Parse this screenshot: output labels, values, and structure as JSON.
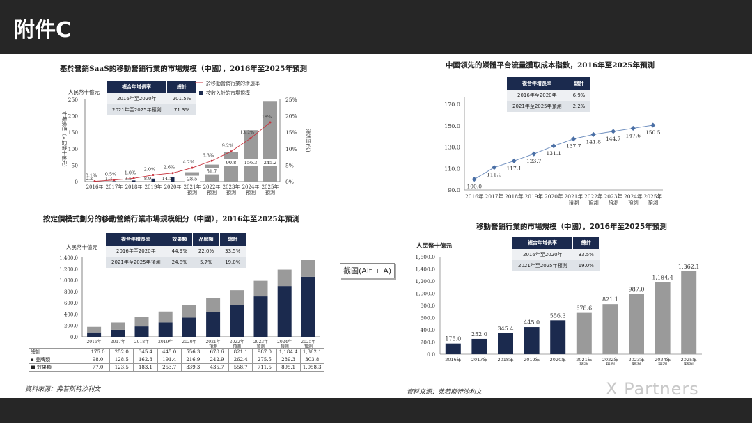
{
  "header": {
    "title": "附件C"
  },
  "tooltip": {
    "label": "截圖(Alt + A)"
  },
  "watermark": {
    "text": "X Partners"
  },
  "sources": {
    "left": "資料來源：弗若斯特沙利文",
    "right": "資料來源：弗若斯特沙利文"
  },
  "colors": {
    "navy": "#1b2a4e",
    "grey": "#9a9a9a",
    "red": "#c8323c",
    "line_blue": "#6f8fbf",
    "bar_dark": "#262626"
  },
  "chart_data": [
    {
      "id": "saas",
      "type": "bar",
      "title": "基於營銷SaaS的移動營銷行業的市場規模（中國），2016年至2025年預測",
      "unit": "人民幣十億元",
      "ylabel": "市場規模（人民幣十億元）",
      "y2label": "滲透率(%)",
      "ylim": [
        0,
        250
      ],
      "y2lim": [
        0,
        25
      ],
      "yticks": [
        "0",
        "50",
        "100",
        "150",
        "200",
        "250"
      ],
      "y2ticks": [
        "0%",
        "5%",
        "10%",
        "15%",
        "20%",
        "25%"
      ],
      "categories": [
        "2016年",
        "2017年",
        "2018年",
        "2019年",
        "2020年",
        "2021年預測",
        "2022年預測",
        "2023年預測",
        "2024年預測",
        "2025年預測"
      ],
      "legend": [
        "於移動營銷行業的滲透率",
        "按收入計的市場規模"
      ],
      "series": [
        {
          "name": "按收入計的市場規模",
          "values": [
            0.2,
            1.3,
            3.5,
            8.9,
            14.5,
            28.5,
            51.7,
            90.8,
            156.3,
            245.2
          ],
          "labels": [
            "0.2",
            "1.3",
            "3.5",
            "8.9",
            "14.5",
            "28.5",
            "51.7",
            "90.8",
            "156.3",
            "245.2"
          ]
        },
        {
          "name": "於移動營銷行業的滲透率",
          "values": [
            0.1,
            0.5,
            1.0,
            2.0,
            2.6,
            4.2,
            6.3,
            9.2,
            13.2,
            18
          ],
          "labels": [
            "0.1%",
            "0.5%",
            "1.0%",
            "2.0%",
            "2.6%",
            "4.2%",
            "6.3%",
            "9.2%",
            "13.2%",
            "18%"
          ]
        }
      ],
      "cagr": {
        "headers": [
          "複合年增長率",
          "總計"
        ],
        "rows": [
          [
            "2016年至2020年",
            "201.5%"
          ],
          [
            "2021年至2025年預測",
            "71.3%"
          ]
        ]
      }
    },
    {
      "id": "cost_index",
      "type": "line",
      "title": "中國領先的媒體平台流量獲取成本指數，2016年至2025年預測",
      "ylim": [
        90,
        170
      ],
      "yticks": [
        "90.0",
        "110.0",
        "130.0",
        "150.0",
        "170.0"
      ],
      "categories": [
        "2016年",
        "2017年",
        "2018年",
        "2019年",
        "2020年",
        "2021年預測",
        "2022年預測",
        "2023年預測",
        "2024年預測",
        "2025年預測"
      ],
      "series": [
        {
          "name": "指數",
          "values": [
            100.0,
            111.0,
            117.1,
            123.7,
            131.1,
            137.7,
            141.8,
            144.7,
            147.6,
            150.5
          ],
          "labels": [
            "100.0",
            "111.0",
            "117.1",
            "123.7",
            "131.1",
            "137.7",
            "141.8",
            "144.7",
            "147.6",
            "150.5"
          ]
        }
      ],
      "cagr": {
        "headers": [
          "複合年增長率",
          "總計"
        ],
        "rows": [
          [
            "2016年至2020年",
            "6.9%"
          ],
          [
            "2021年至2025年預測",
            "2.2%"
          ]
        ]
      }
    },
    {
      "id": "pricing",
      "type": "bar",
      "stacked": true,
      "title": "按定價模式劃分的移動營銷行業市場規模細分（中國），2016年至2025年預測",
      "unit": "人民幣十億元",
      "ylim": [
        0,
        1400
      ],
      "yticks": [
        "0.0",
        "200.0",
        "400.0",
        "600.0",
        "800.0",
        "1,000.0",
        "1,200.0",
        "1,400.0"
      ],
      "categories": [
        "2016年",
        "2017年",
        "2018年",
        "2019年",
        "2020年",
        "2021年預測",
        "2022年預測",
        "2023年預測",
        "2024年預測",
        "2025年預測"
      ],
      "series": [
        {
          "name": "效果類",
          "values": [
            77.0,
            123.5,
            183.1,
            253.7,
            339.3,
            435.7,
            558.7,
            711.5,
            895.1,
            1058.3
          ],
          "labels": [
            "77.0",
            "123.5",
            "183.1",
            "253.7",
            "339.3",
            "435.7",
            "558.7",
            "711.5",
            "895.1",
            "1,058.3"
          ]
        },
        {
          "name": "品牌類",
          "values": [
            98.0,
            128.5,
            162.3,
            191.4,
            216.9,
            242.9,
            262.4,
            275.5,
            289.3,
            303.8
          ],
          "labels": [
            "98.0",
            "128.5",
            "162.3",
            "191.4",
            "216.9",
            "242.9",
            "262.4",
            "275.5",
            "289.3",
            "303.8"
          ]
        }
      ],
      "totals": {
        "name": "總計",
        "labels": [
          "175.0",
          "252.0",
          "345.4",
          "445.0",
          "556.3",
          "678.6",
          "821.1",
          "987.0",
          "1,184.4",
          "1,362.1"
        ]
      },
      "cagr": {
        "headers": [
          "複合年增長率",
          "效果類",
          "品牌類",
          "總計"
        ],
        "rows": [
          [
            "2016年至2020年",
            "44.9%",
            "22.0%",
            "33.5%"
          ],
          [
            "2021年至2025年預測",
            "24.8%",
            "5.7%",
            "19.0%"
          ]
        ]
      }
    },
    {
      "id": "market",
      "type": "bar",
      "title": "移動營銷行業的市場規模（中國），2016年至2025年預測",
      "unit": "人民幣十億元",
      "ylim": [
        0,
        1600
      ],
      "yticks": [
        "0.0",
        "200.0",
        "400.0",
        "600.0",
        "800.0",
        "1,000.0",
        "1,200.0",
        "1,400.0",
        "1,600.0"
      ],
      "categories": [
        "2016年",
        "2017年",
        "2018年",
        "2019年",
        "2020年",
        "2021年預測",
        "2022年預測",
        "2023年預測",
        "2024年預測",
        "2025年預測"
      ],
      "series": [
        {
          "name": "市場規模",
          "values": [
            175.0,
            252.0,
            345.4,
            445.0,
            556.3,
            678.6,
            821.1,
            987.0,
            1184.4,
            1362.1
          ],
          "labels": [
            "175.0",
            "252.0",
            "345.4",
            "445.0",
            "556.3",
            "678.6",
            "821.1",
            "987.0",
            "1,184.4",
            "1,362.1"
          ]
        }
      ],
      "cagr": {
        "headers": [
          "複合年增長率",
          "總計"
        ],
        "rows": [
          [
            "2016年至2020年",
            "33.5%"
          ],
          [
            "2021年至2025年預測",
            "19.0%"
          ]
        ]
      }
    }
  ]
}
